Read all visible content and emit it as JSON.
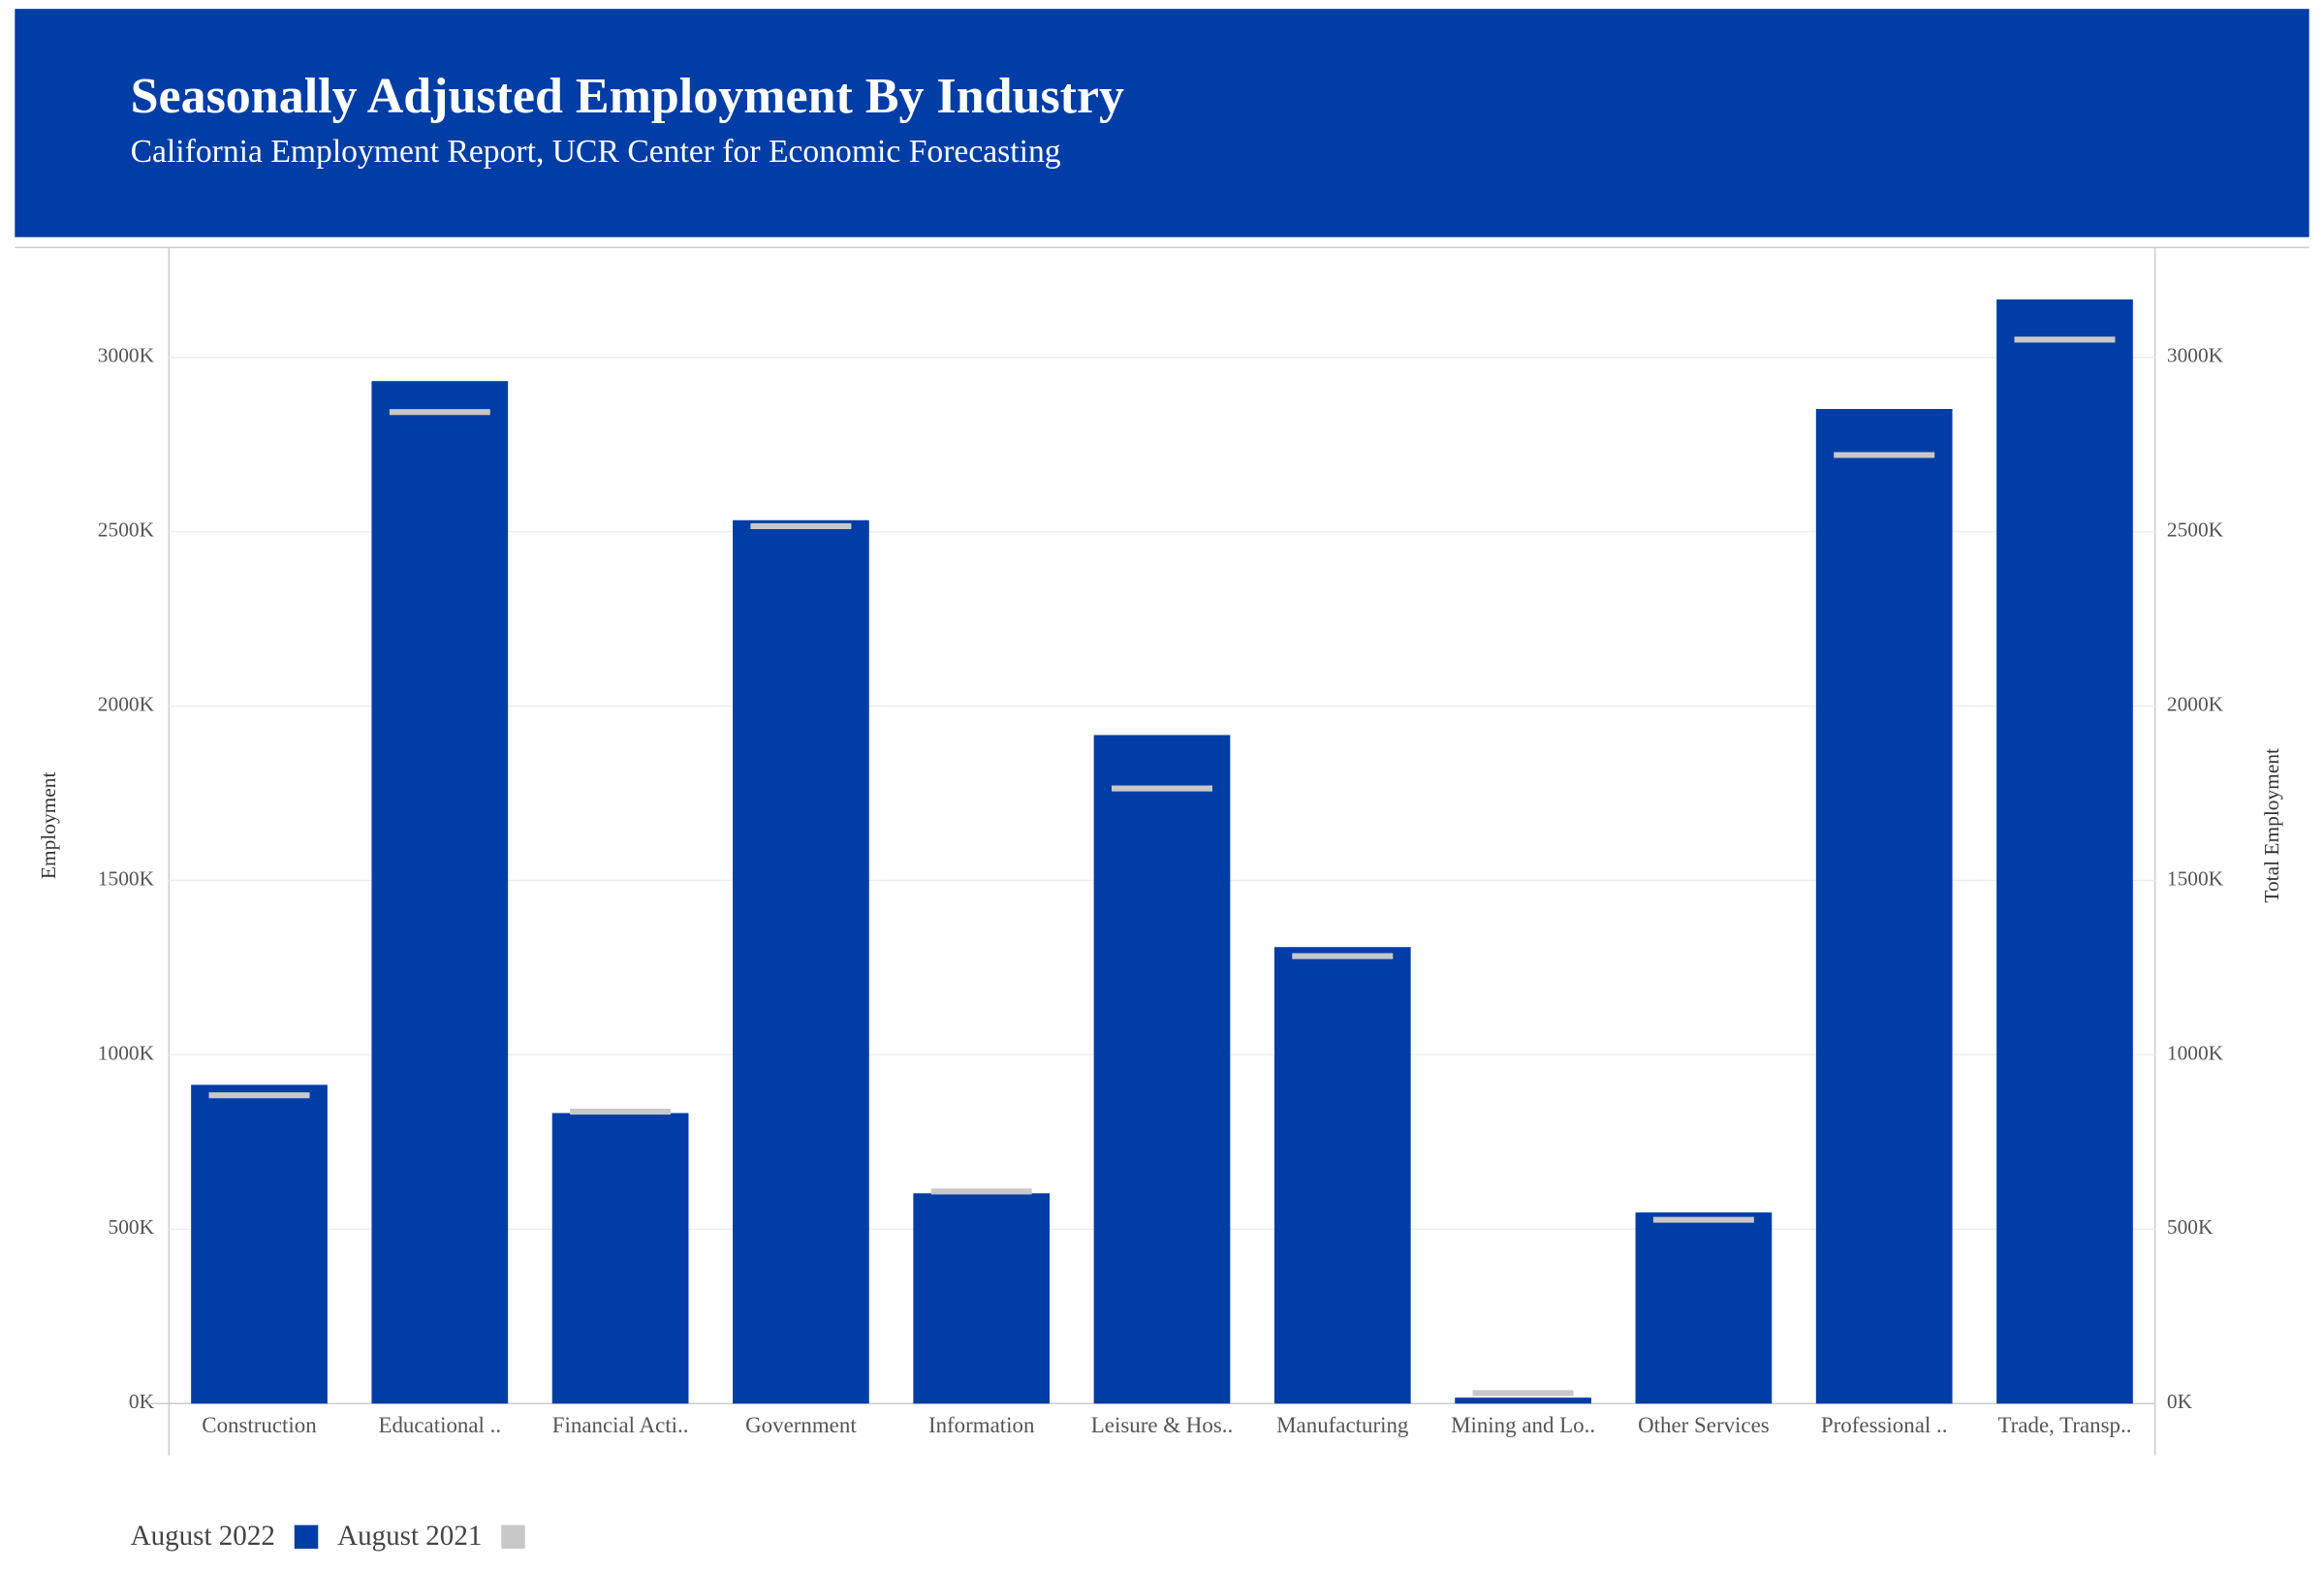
{
  "chart_data": {
    "type": "bar",
    "title": "Seasonally Adjusted Employment By Industry",
    "subtitle": "California Employment Report, UCR Center for Economic Forecasting",
    "y_label": "Employment",
    "y2_label": "Total Employment",
    "categories": [
      "Construction",
      "Educational ..",
      "Financial Acti..",
      "Government",
      "Information",
      "Leisure & Hos..",
      "Manufacturing",
      "Mining and Lo..",
      "Other Services",
      "Professional ..",
      "Trade, Transp.."
    ],
    "series": [
      {
        "name": "August 2022",
        "color": "#003da5",
        "values": [
          914,
          2932,
          833,
          2533,
          603,
          1917,
          1309,
          17,
          548,
          2852,
          3166
        ]
      },
      {
        "name": "August 2021",
        "color": "#c8c8c8",
        "axis": "y2",
        "values": [
          884,
          2843,
          837,
          2516,
          608,
          1764,
          1283,
          30,
          527,
          2720,
          3051
        ]
      }
    ],
    "ylim": [
      0,
      3315
    ],
    "yticks": [
      {
        "value": 0,
        "label": "0K"
      },
      {
        "value": 500,
        "label": "500K"
      },
      {
        "value": 1000,
        "label": "1000K"
      },
      {
        "value": 1500,
        "label": "1500K"
      },
      {
        "value": 2000,
        "label": "2000K"
      },
      {
        "value": 2500,
        "label": "2500K"
      },
      {
        "value": 3000,
        "label": "3000K"
      }
    ],
    "y2lim": [
      0,
      3315
    ],
    "y2ticks": [
      {
        "value": 0,
        "label": "0K"
      },
      {
        "value": 500,
        "label": "500K"
      },
      {
        "value": 1000,
        "label": "1000K"
      },
      {
        "value": 1500,
        "label": "1500K"
      },
      {
        "value": 2000,
        "label": "2000K"
      },
      {
        "value": 2500,
        "label": "2500K"
      },
      {
        "value": 3000,
        "label": "3000K"
      }
    ],
    "grid": true,
    "legend": "bottom-left",
    "header_color": "#003da5"
  }
}
